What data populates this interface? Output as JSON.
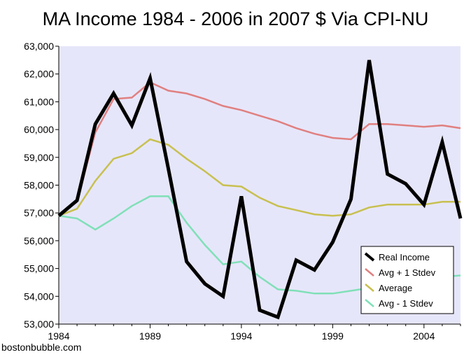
{
  "chart_data": {
    "type": "line",
    "title": "MA Income 1984 - 2006 in 2007 $ Via CPI-NU",
    "xlabel": "",
    "ylabel": "",
    "credit": "bostonbubble.com",
    "xlim": [
      1984,
      2006
    ],
    "ylim": [
      53000,
      63000
    ],
    "x_ticks": [
      1984,
      1989,
      1994,
      1999,
      2004
    ],
    "x_tick_labels": [
      "1984",
      "1989",
      "1994",
      "1999",
      "2004"
    ],
    "y_ticks": [
      53000,
      54000,
      55000,
      56000,
      57000,
      58000,
      59000,
      60000,
      61000,
      62000,
      63000
    ],
    "y_tick_labels": [
      "53,000",
      "54,000",
      "55,000",
      "56,000",
      "57,000",
      "58,000",
      "59,000",
      "60,000",
      "61,000",
      "62,000",
      "63,000"
    ],
    "plot_background": "#e6e6fa",
    "legend_position": "bottom-right",
    "x": [
      1984,
      1985,
      1986,
      1987,
      1988,
      1989,
      1990,
      1991,
      1992,
      1993,
      1994,
      1995,
      1996,
      1997,
      1998,
      1999,
      2000,
      2001,
      2002,
      2003,
      2004,
      2005,
      2006
    ],
    "series": [
      {
        "name": "Real Income",
        "color": "#000000",
        "values": [
          56900,
          57450,
          60200,
          61300,
          60150,
          61850,
          58600,
          55250,
          54450,
          54000,
          57600,
          53500,
          53250,
          55300,
          54950,
          55950,
          57500,
          62500,
          58400,
          58050,
          57300,
          59550,
          56800
        ]
      },
      {
        "name": "Avg + 1 Stdev",
        "color": "#e08080",
        "values": [
          56900,
          57400,
          59900,
          61100,
          61150,
          61700,
          61400,
          61300,
          61100,
          60850,
          60700,
          60500,
          60300,
          60050,
          59850,
          59700,
          59650,
          60200,
          60200,
          60150,
          60100,
          60150,
          60050
        ]
      },
      {
        "name": "Average",
        "color": "#c8c050",
        "values": [
          56900,
          57150,
          58150,
          58950,
          59150,
          59650,
          59450,
          58950,
          58500,
          58000,
          57950,
          57550,
          57250,
          57100,
          56950,
          56900,
          56950,
          57200,
          57300,
          57300,
          57300,
          57400,
          57400
        ]
      },
      {
        "name": "Avg - 1 Stdev",
        "color": "#80e0b8",
        "values": [
          56900,
          56800,
          56400,
          56800,
          57250,
          57600,
          57600,
          56650,
          55850,
          55150,
          55250,
          54700,
          54250,
          54200,
          54100,
          54100,
          54200,
          54300,
          54400,
          54500,
          54550,
          54700,
          54750
        ]
      }
    ]
  }
}
